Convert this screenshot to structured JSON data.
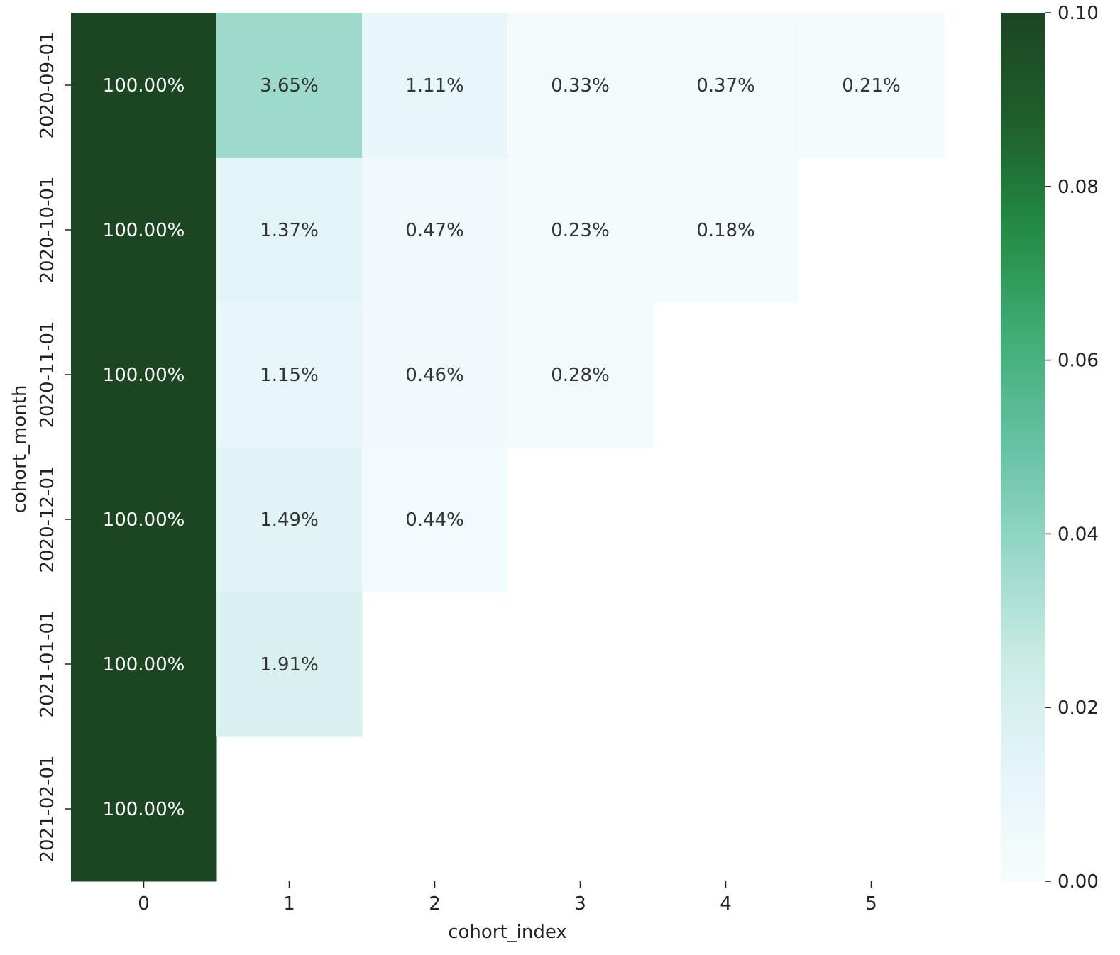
{
  "chart_data": {
    "type": "heatmap",
    "title": "",
    "xlabel": "cohort_index",
    "ylabel": "cohort_month",
    "x_categories": [
      "0",
      "1",
      "2",
      "3",
      "4",
      "5"
    ],
    "y_categories": [
      "2020-09-01",
      "2020-10-01",
      "2020-11-01",
      "2020-12-01",
      "2021-01-01",
      "2021-02-01"
    ],
    "values": [
      [
        1.0,
        0.0365,
        0.0111,
        0.0033,
        0.0037,
        0.0021
      ],
      [
        1.0,
        0.0137,
        0.0047,
        0.0023,
        0.0018,
        null
      ],
      [
        1.0,
        0.0115,
        0.0046,
        0.0028,
        null,
        null
      ],
      [
        1.0,
        0.0149,
        0.0044,
        null,
        null,
        null
      ],
      [
        1.0,
        0.0191,
        null,
        null,
        null,
        null
      ],
      [
        1.0,
        null,
        null,
        null,
        null,
        null
      ]
    ],
    "labels": [
      [
        "100.00%",
        "3.65%",
        "1.11%",
        "0.33%",
        "0.37%",
        "0.21%"
      ],
      [
        "100.00%",
        "1.37%",
        "0.47%",
        "0.23%",
        "0.18%",
        ""
      ],
      [
        "100.00%",
        "1.15%",
        "0.46%",
        "0.28%",
        "",
        ""
      ],
      [
        "100.00%",
        "1.49%",
        "0.44%",
        "",
        "",
        ""
      ],
      [
        "100.00%",
        "1.91%",
        "",
        "",
        "",
        ""
      ],
      [
        "100.00%",
        "",
        "",
        "",
        "",
        ""
      ]
    ],
    "colorbar": {
      "vmin": 0.0,
      "vmax": 0.1,
      "ticks": [
        "0.00",
        "0.02",
        "0.04",
        "0.06",
        "0.08",
        "0.10"
      ],
      "colors": [
        "#f7fcfd",
        "#e5f5f9",
        "#ccece6",
        "#99d8c9",
        "#66c2a4",
        "#41ae76",
        "#238b45",
        "#1f5f2c",
        "#1c4521"
      ]
    },
    "annotation_colors": {
      "dark_text": "#333333",
      "light_text": "#ffffff"
    }
  }
}
